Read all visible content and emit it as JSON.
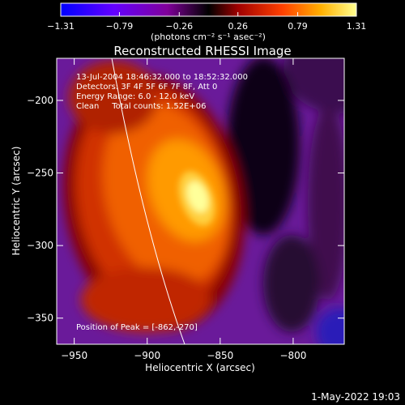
{
  "chart_data": {
    "type": "heatmap",
    "title": "Reconstructed RHESSI Image",
    "xlabel": "Heliocentric X (arcsec)",
    "ylabel": "Heliocentric Y (arcsec)",
    "xlim": [
      -962,
      -765
    ],
    "ylim": [
      -368,
      -171
    ],
    "x_ticks": [
      -950,
      -900,
      -850,
      -800
    ],
    "y_ticks": [
      -200,
      -250,
      -300,
      -350
    ],
    "x_tick_labels": [
      "−950",
      "−900",
      "−850",
      "−800"
    ],
    "y_tick_labels": [
      "−200",
      "−250",
      "−300",
      "−350"
    ],
    "colorbar": {
      "min": -1.31,
      "max": 1.31,
      "ticks": [
        -1.31,
        -0.79,
        -0.26,
        0.26,
        0.79,
        1.31
      ],
      "tick_labels": [
        "−1.31",
        "−0.79",
        "−0.26",
        "0.26",
        "0.79",
        "1.31"
      ],
      "units_label": "(photons cm⁻² s⁻¹ asec⁻²)"
    },
    "annotations": [
      "13-Jul-2004 18:46:32.000 to 18:52:32.000",
      "Detectors: 3F 4F 5F 6F 7F 8F, Att 0",
      "Energy Range: 6.0 - 12.0 keV",
      "Clean     Total counts: 1.52E+06"
    ],
    "peak_label": "Position of Peak = [-862,-270]",
    "peak": {
      "x": -862,
      "y": -270
    },
    "colors": {
      "colormap": [
        "#0000ff",
        "#5a00ff",
        "#8000c8",
        "#5a0a5a",
        "#000000",
        "#780000",
        "#c80000",
        "#ff5000",
        "#ffa000",
        "#ffe650",
        "#ffffff"
      ]
    }
  },
  "footer": {
    "date": "1-May-2022 19:03"
  }
}
